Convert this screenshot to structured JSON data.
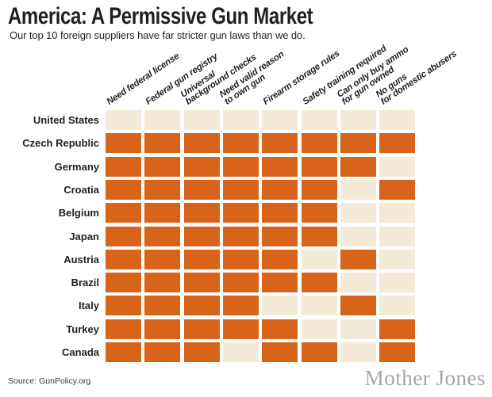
{
  "chart_data": {
    "type": "heatmap",
    "title": "America: A Permissive Gun Market",
    "subtitle": "Our top 10 foreign suppliers have far stricter gun laws than we do.",
    "columns": [
      {
        "label_lines": [
          "Need federal license"
        ]
      },
      {
        "label_lines": [
          "Federal gun registry"
        ]
      },
      {
        "label_lines": [
          "Universal",
          "background checks"
        ]
      },
      {
        "label_lines": [
          "Need valid reason",
          "to own gun"
        ]
      },
      {
        "label_lines": [
          "Firearm storage rules"
        ]
      },
      {
        "label_lines": [
          "Safety training required"
        ]
      },
      {
        "label_lines": [
          "Can only buy ammo",
          "for gun owned"
        ]
      },
      {
        "label_lines": [
          "No guns",
          "for domestic abusers"
        ]
      }
    ],
    "rows": [
      {
        "country": "United States",
        "values": [
          0,
          0,
          0,
          0,
          0,
          0,
          0,
          0
        ]
      },
      {
        "country": "Czech Republic",
        "values": [
          1,
          1,
          1,
          1,
          1,
          1,
          1,
          1
        ]
      },
      {
        "country": "Germany",
        "values": [
          1,
          1,
          1,
          1,
          1,
          1,
          1,
          0
        ]
      },
      {
        "country": "Croatia",
        "values": [
          1,
          1,
          1,
          1,
          1,
          1,
          0,
          1
        ]
      },
      {
        "country": "Belgium",
        "values": [
          1,
          1,
          1,
          1,
          1,
          1,
          0,
          0
        ]
      },
      {
        "country": "Japan",
        "values": [
          1,
          1,
          1,
          1,
          1,
          1,
          0,
          0
        ]
      },
      {
        "country": "Austria",
        "values": [
          1,
          1,
          1,
          1,
          1,
          0,
          1,
          0
        ]
      },
      {
        "country": "Brazil",
        "values": [
          1,
          1,
          1,
          1,
          1,
          1,
          0,
          0
        ]
      },
      {
        "country": "Italy",
        "values": [
          1,
          1,
          1,
          1,
          0,
          0,
          1,
          0
        ]
      },
      {
        "country": "Turkey",
        "values": [
          1,
          1,
          1,
          1,
          1,
          0,
          0,
          1
        ]
      },
      {
        "country": "Canada",
        "values": [
          1,
          1,
          1,
          0,
          1,
          1,
          0,
          1
        ]
      }
    ],
    "value_meaning": {
      "1": "country has this gun law",
      "0": "no such law"
    },
    "colors": {
      "has_law": "#D8641A",
      "no_law": "#F4EAD8"
    }
  },
  "footer": {
    "source": "Source: GunPolicy.org",
    "brand": "Mother Jones"
  }
}
